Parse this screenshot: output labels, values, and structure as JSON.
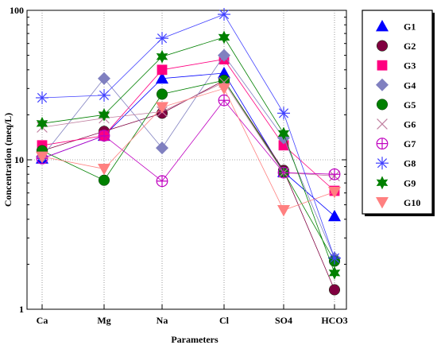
{
  "chart_data": {
    "type": "line",
    "xlabel": "Parameters",
    "ylabel": "Concentration (meq/L)",
    "yscale": "log",
    "ylim": [
      1,
      100
    ],
    "y_ticks": [
      "1",
      "10",
      "100"
    ],
    "categories": [
      "Ca",
      "Mg",
      "Na",
      "Cl",
      "SO4",
      "HCO3"
    ],
    "grid": "dotted lines at each category and at 10",
    "legend_position": "right",
    "series": [
      {
        "name": "G1",
        "color": "#0000ff",
        "marker": "triangle-up",
        "values": [
          10.2,
          14.5,
          35,
          38,
          8.3,
          4.2
        ]
      },
      {
        "name": "G2",
        "color": "#800040",
        "marker": "circle",
        "values": [
          11.5,
          15.5,
          20.5,
          34,
          8.5,
          1.35
        ]
      },
      {
        "name": "G3",
        "color": "#ff0080",
        "marker": "square",
        "values": [
          12.5,
          14.5,
          40,
          47,
          12.5,
          6.2
        ]
      },
      {
        "name": "G4",
        "color": "#8080c0",
        "marker": "diamond",
        "values": [
          10.5,
          35,
          12,
          50,
          14,
          2.2
        ]
      },
      {
        "name": "G5",
        "color": "#008000",
        "marker": "circle",
        "values": [
          11.5,
          7.3,
          27.5,
          34,
          8.3,
          2.1
        ]
      },
      {
        "name": "G6",
        "color": "#c080a0",
        "marker": "x",
        "values": [
          16.5,
          19,
          21,
          33,
          8.2,
          7.8
        ]
      },
      {
        "name": "G7",
        "color": "#c000c0",
        "marker": "circle-plus",
        "values": [
          10.2,
          14.5,
          7.2,
          25,
          8.2,
          8
        ]
      },
      {
        "name": "G8",
        "color": "#4040ff",
        "marker": "asterisk",
        "values": [
          26,
          27,
          65,
          94,
          20.5,
          2.2
        ]
      },
      {
        "name": "G9",
        "color": "#008000",
        "marker": "star",
        "values": [
          17.5,
          20,
          49,
          66,
          15,
          1.75
        ]
      },
      {
        "name": "G10",
        "color": "#ff8080",
        "marker": "triangle-down",
        "values": [
          10.5,
          8.7,
          22.5,
          30,
          4.6,
          6.1
        ]
      }
    ]
  }
}
